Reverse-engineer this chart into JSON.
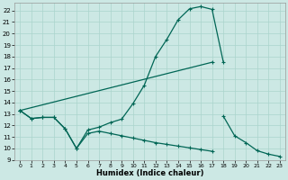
{
  "xlabel": "Humidex (Indice chaleur)",
  "background_color": "#cce8e4",
  "grid_color": "#aad4cc",
  "line_color": "#006655",
  "curve1_x": [
    0,
    1,
    2,
    3,
    4,
    5,
    6,
    7,
    8,
    9,
    10,
    11,
    12,
    13,
    14,
    15,
    16,
    17,
    18
  ],
  "curve1_y": [
    13.3,
    12.6,
    12.7,
    12.7,
    11.7,
    10.0,
    11.6,
    11.85,
    12.25,
    12.55,
    13.9,
    15.5,
    18.0,
    19.5,
    21.2,
    22.15,
    22.35,
    22.1,
    17.5
  ],
  "line2_x": [
    0,
    17
  ],
  "line2_y": [
    13.3,
    17.5
  ],
  "curve3_x": [
    0,
    1,
    2,
    3,
    4,
    5,
    6,
    7,
    8,
    9,
    10,
    11,
    12,
    13,
    14,
    15,
    16,
    17,
    18,
    19,
    20,
    21,
    22,
    23
  ],
  "curve3_y": [
    13.3,
    12.6,
    12.7,
    12.7,
    11.7,
    10.0,
    11.3,
    11.5,
    11.3,
    11.1,
    10.9,
    10.7,
    10.5,
    10.35,
    10.2,
    10.05,
    9.9,
    9.75,
    12.8,
    11.1,
    10.5,
    9.8,
    9.5,
    9.3
  ],
  "xlim": [
    -0.5,
    23.5
  ],
  "ylim": [
    9,
    22.7
  ],
  "yticks": [
    9,
    10,
    11,
    12,
    13,
    14,
    15,
    16,
    17,
    18,
    19,
    20,
    21,
    22
  ],
  "xticks": [
    0,
    1,
    2,
    3,
    4,
    5,
    6,
    7,
    8,
    9,
    10,
    11,
    12,
    13,
    14,
    15,
    16,
    17,
    18,
    19,
    20,
    21,
    22,
    23
  ],
  "markersize": 3,
  "linewidth": 0.9
}
